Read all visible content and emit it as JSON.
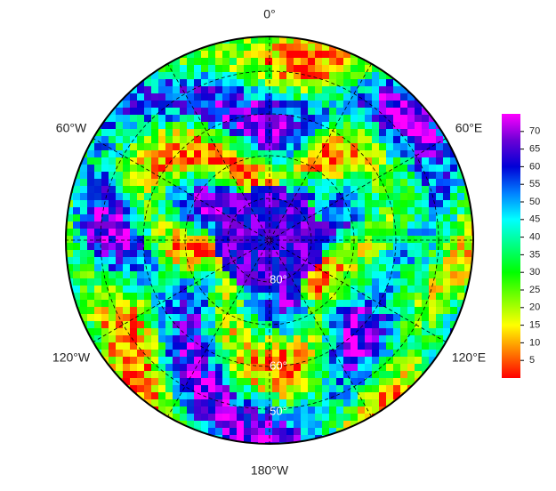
{
  "map": {
    "longitude_labels": [
      "0°",
      "60°E",
      "120°E",
      "180°W",
      "120°W",
      "60°W"
    ],
    "latitude_labels": [
      "80°",
      "60°",
      "50°"
    ],
    "colorbar": {
      "range": [
        0,
        75
      ],
      "ticks": [
        5,
        10,
        15,
        20,
        25,
        30,
        35,
        40,
        45,
        50,
        55,
        60,
        65,
        70
      ]
    }
  }
}
